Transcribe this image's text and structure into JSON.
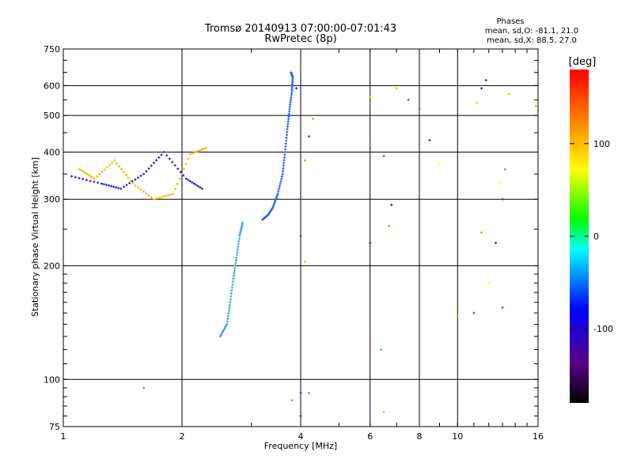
{
  "chart_data": {
    "type": "scatter",
    "title": "Tromsø 20140913 07:00:00-07:01:43",
    "subtitle": "RwPretec (8p)",
    "xlabel": "Frequency [MHz]",
    "ylabel": "Stationary phase Virtual Height [km]",
    "x_scale": "log",
    "y_scale": "log",
    "xlim": [
      1,
      16
    ],
    "ylim": [
      75,
      750
    ],
    "x_ticks": [
      "1",
      "2",
      "4",
      "6",
      "8",
      "10",
      "16"
    ],
    "y_ticks": [
      "75",
      "100",
      "200",
      "300",
      "400",
      "500",
      "600",
      "750"
    ],
    "grid": true,
    "phase_info": {
      "title": "Phases",
      "line_o": "mean, sd,O: -81.1, 21.0",
      "line_x": "mean, sd,X:  88.5, 27.0"
    },
    "colorbar": {
      "label": "[deg]",
      "range": [
        -180,
        180
      ],
      "ticks": [
        "100",
        "0",
        "-100"
      ],
      "colors": [
        "#000000",
        "#5a0088",
        "#0000ff",
        "#00ffff",
        "#00ff00",
        "#ffff00",
        "#ff0000"
      ]
    },
    "series": [
      {
        "color": "#1e64ff",
        "points": [
          [
            3.2,
            265
          ],
          [
            3.3,
            272
          ],
          [
            3.4,
            285
          ],
          [
            3.5,
            310
          ],
          [
            3.6,
            350
          ],
          [
            3.65,
            400
          ],
          [
            3.7,
            460
          ],
          [
            3.75,
            520
          ],
          [
            3.8,
            580
          ],
          [
            3.82,
            630
          ],
          [
            3.78,
            650
          ]
        ]
      },
      {
        "color": "#32a0ff",
        "points": [
          [
            2.5,
            130
          ],
          [
            2.6,
            140
          ],
          [
            2.65,
            160
          ],
          [
            2.7,
            185
          ],
          [
            2.75,
            210
          ],
          [
            2.8,
            240
          ],
          [
            2.85,
            260
          ]
        ]
      },
      {
        "color": "#ffb400",
        "points": [
          [
            1.1,
            360
          ],
          [
            1.2,
            340
          ],
          [
            1.35,
            380
          ],
          [
            1.5,
            330
          ],
          [
            1.7,
            300
          ],
          [
            1.9,
            310
          ],
          [
            2.1,
            395
          ],
          [
            2.3,
            410
          ]
        ]
      },
      {
        "color": "#1e1ec8",
        "points": [
          [
            1.05,
            345
          ],
          [
            1.25,
            330
          ],
          [
            1.4,
            320
          ],
          [
            1.6,
            350
          ],
          [
            1.8,
            400
          ],
          [
            2.05,
            340
          ],
          [
            2.25,
            320
          ]
        ]
      }
    ],
    "scattered_points": [
      {
        "x": 4.0,
        "y": 92,
        "color": "#1e1ec8"
      },
      {
        "x": 4.0,
        "y": 80,
        "color": "#1e1ec8"
      },
      {
        "x": 3.8,
        "y": 88,
        "color": "#32a0ff"
      },
      {
        "x": 4.2,
        "y": 92,
        "color": "#32a0ff"
      },
      {
        "x": 1.6,
        "y": 95,
        "color": "#32a0ff"
      },
      {
        "x": 6.5,
        "y": 82,
        "color": "#ffb400"
      },
      {
        "x": 6.4,
        "y": 120,
        "color": "#32a0ff"
      },
      {
        "x": 6.8,
        "y": 290,
        "color": "#1e1ec8"
      },
      {
        "x": 6.0,
        "y": 230,
        "color": "#1e1ec8"
      },
      {
        "x": 6.0,
        "y": 420,
        "color": "#32a0ff"
      },
      {
        "x": 6.5,
        "y": 390,
        "color": "#1e64ff"
      },
      {
        "x": 7.0,
        "y": 590,
        "color": "#ffb400"
      },
      {
        "x": 7.5,
        "y": 550,
        "color": "#1e64ff"
      },
      {
        "x": 8.0,
        "y": 520,
        "color": "#1e64ff"
      },
      {
        "x": 8.5,
        "y": 430,
        "color": "#1e1ec8"
      },
      {
        "x": 9.0,
        "y": 370,
        "color": "#ffff00"
      },
      {
        "x": 10.0,
        "y": 148,
        "color": "#ff8c00"
      },
      {
        "x": 11.0,
        "y": 150,
        "color": "#1e64ff"
      },
      {
        "x": 11.5,
        "y": 590,
        "color": "#1e1ec8"
      },
      {
        "x": 11.8,
        "y": 620,
        "color": "#1e1ec8"
      },
      {
        "x": 11.2,
        "y": 540,
        "color": "#ffb400"
      },
      {
        "x": 12.5,
        "y": 230,
        "color": "#1e1ec8"
      },
      {
        "x": 13.0,
        "y": 300,
        "color": "#1e1ec8"
      },
      {
        "x": 13.2,
        "y": 360,
        "color": "#32a0ff"
      },
      {
        "x": 12.8,
        "y": 330,
        "color": "#ffff00"
      },
      {
        "x": 13.0,
        "y": 155,
        "color": "#1e64ff"
      },
      {
        "x": 11.5,
        "y": 245,
        "color": "#ff8c00"
      },
      {
        "x": 12.0,
        "y": 180,
        "color": "#ffff00"
      },
      {
        "x": 15.8,
        "y": 530,
        "color": "#ff8c00"
      },
      {
        "x": 13.5,
        "y": 570,
        "color": "#ffb400"
      },
      {
        "x": 4.2,
        "y": 440,
        "color": "#ff0000"
      },
      {
        "x": 4.1,
        "y": 380,
        "color": "#ff8c00"
      },
      {
        "x": 4.3,
        "y": 490,
        "color": "#ff8c00"
      },
      {
        "x": 4.0,
        "y": 240,
        "color": "#1e1ec8"
      },
      {
        "x": 4.0,
        "y": 300,
        "color": "#1e1ec8"
      },
      {
        "x": 3.9,
        "y": 590,
        "color": "#1e1ec8"
      },
      {
        "x": 4.1,
        "y": 205,
        "color": "#ffb400"
      },
      {
        "x": 6.7,
        "y": 255,
        "color": "#ff8c00"
      },
      {
        "x": 6.0,
        "y": 560,
        "color": "#ffb400"
      }
    ]
  }
}
